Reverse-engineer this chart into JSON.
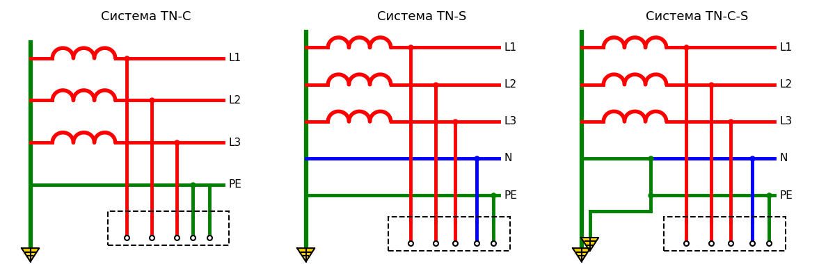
{
  "title_tnc": "Система TN-C",
  "title_tns": "Система TN-S",
  "title_tncs": "Система TN-C-S",
  "red": "#FF0000",
  "green": "#008000",
  "blue": "#0000FF",
  "black": "#000000",
  "bg": "#FFFFFF",
  "lw_main": 3.5,
  "lw_bus": 4.5
}
